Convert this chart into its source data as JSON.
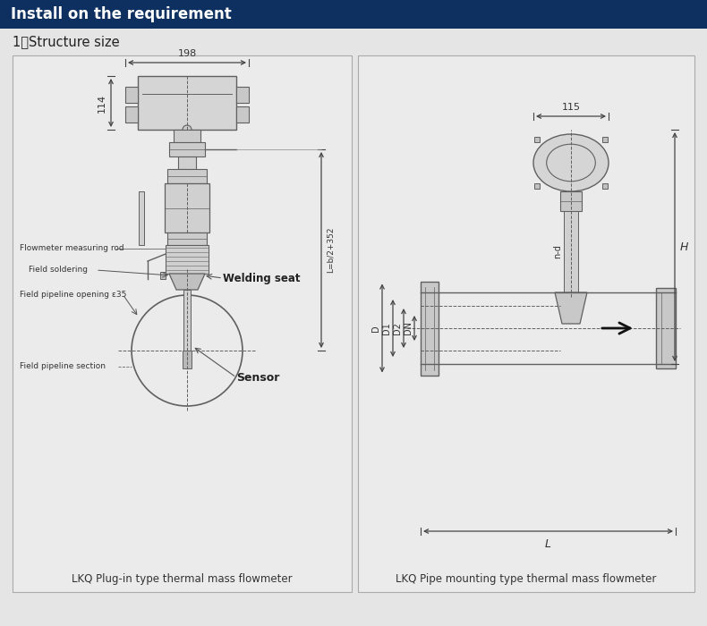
{
  "title_bar_color": "#0d3060",
  "title_text": "Install on the requirement",
  "title_text_color": "#ffffff",
  "bg_color": "#e5e5e5",
  "box_bg": "#e8e8e8",
  "line_color": "#666666",
  "subtitle": "1、Structure size",
  "left_caption": "LKQ Plug-in type thermal mass flowmeter",
  "right_caption": "LKQ Pipe mounting type thermal mass flowmeter",
  "dim_198": "198",
  "dim_114": "114",
  "dim_L_label": "L=b/2+352",
  "dim_115": "115",
  "dim_H": "H",
  "dim_L2": "L",
  "dim_D": "D",
  "dim_D1": "D1",
  "dim_D2": "D2",
  "dim_DN": "DN",
  "dim_nd": "n-d",
  "label_rod": "Flowmeter measuring rod",
  "label_field_sol": "Field soldering",
  "label_pipe_opening": "Field pipeline opening ε35",
  "label_pipe_section": "Field pipeline section",
  "label_welding": "Welding seat",
  "label_sensor": "Sensor"
}
